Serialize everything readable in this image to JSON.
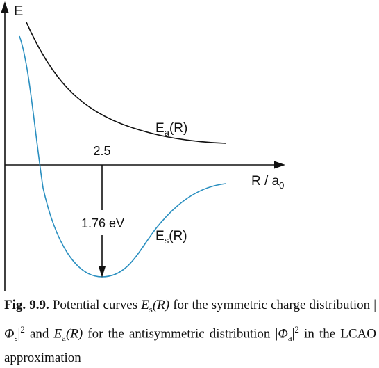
{
  "chart_data": {
    "type": "line",
    "title": "",
    "xlabel_main": "R",
    "xlabel_slash": " / a",
    "xlabel_sub": "0",
    "ylabel": "E",
    "series": [
      {
        "name_main": "E",
        "name_sub": "a",
        "name_tail": "(R)",
        "color": "#111111",
        "kind": "antisymmetric"
      },
      {
        "name_main": "E",
        "name_sub": "s",
        "name_tail": "(R)",
        "color": "#2a8fc0",
        "kind": "symmetric"
      }
    ],
    "annotations": {
      "minimum_position": "2.5",
      "binding_energy": "1.76 eV"
    }
  },
  "caption": {
    "label": "Fig. 9.9.",
    "t1": " Potential curves ",
    "Es": "E",
    "Es_sub": "s",
    "Es_arg": "(R)",
    "t2": " for the symmetric charge distribution |",
    "phi_s": "Φ",
    "phi_s_sub": "s",
    "pow1": "2",
    "t3": " and ",
    "Ea": "E",
    "Ea_sub": "a",
    "Ea_arg": "(R)",
    "t4": " for the antisymmetric distribution |",
    "phi_a": "Φ",
    "phi_a_sub": "a",
    "pow2": "2",
    "t5": " in the LCAO approximation"
  }
}
